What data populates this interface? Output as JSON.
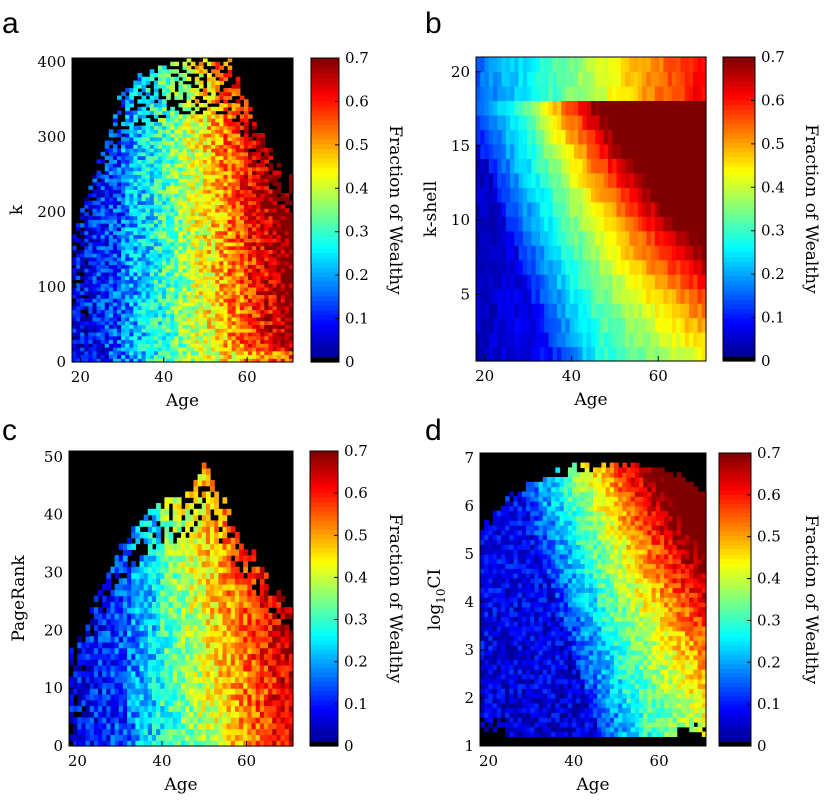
{
  "chart_data": [
    {
      "panel": "a",
      "type": "heatmap",
      "xlabel": "Age",
      "ylabel": "k",
      "xticks": [
        20,
        40,
        60
      ],
      "yticks": [
        0,
        100,
        200,
        300,
        400
      ],
      "xlim": [
        18,
        71
      ],
      "ylim": [
        0,
        405
      ],
      "colorbar": {
        "label": "Fraction of Wealthy",
        "ticks": [
          0,
          0.1,
          0.2,
          0.3,
          0.4,
          0.5,
          0.6,
          0.7
        ],
        "range": [
          0,
          0.7
        ]
      },
      "grid": {
        "nx": 54,
        "ny": 81,
        "top_at_age": [
          [
            18,
            160
          ],
          [
            22,
            230
          ],
          [
            26,
            300
          ],
          [
            30,
            360
          ],
          [
            34,
            380
          ],
          [
            38,
            390
          ],
          [
            44,
            400
          ],
          [
            50,
            405
          ],
          [
            56,
            400
          ],
          [
            60,
            350
          ],
          [
            64,
            300
          ],
          [
            68,
            250
          ],
          [
            71,
            240
          ]
        ],
        "noise": 0.09,
        "sparse": true
      }
    },
    {
      "panel": "b",
      "type": "heatmap",
      "xlabel": "Age",
      "ylabel": "k-shell",
      "xticks": [
        20,
        40,
        60
      ],
      "yticks": [
        5,
        10,
        15,
        20
      ],
      "xlim": [
        18,
        71
      ],
      "ylim": [
        0.5,
        21
      ],
      "colorbar": {
        "label": "Fraction of Wealthy",
        "ticks": [
          0,
          0.1,
          0.2,
          0.3,
          0.4,
          0.5,
          0.6,
          0.7
        ],
        "range": [
          0,
          0.7
        ]
      },
      "grid": {
        "nx": 54,
        "ny": 21,
        "top_at_age": [
          [
            18,
            21
          ],
          [
            71,
            21
          ]
        ],
        "noise": 0.025,
        "sparse": false
      }
    },
    {
      "panel": "c",
      "type": "heatmap",
      "xlabel": "Age",
      "ylabel": "PageRank",
      "xticks": [
        20,
        40,
        60
      ],
      "yticks": [
        0,
        10,
        20,
        30,
        40,
        50
      ],
      "xlim": [
        18,
        71
      ],
      "ylim": [
        0,
        51
      ],
      "colorbar": {
        "label": "Fraction of Wealthy",
        "ticks": [
          0,
          0.1,
          0.2,
          0.3,
          0.4,
          0.5,
          0.6,
          0.7
        ],
        "range": [
          0,
          0.7
        ]
      },
      "grid": {
        "nx": 54,
        "ny": 51,
        "top_at_age": [
          [
            18,
            15
          ],
          [
            22,
            21
          ],
          [
            26,
            28
          ],
          [
            30,
            34
          ],
          [
            34,
            38
          ],
          [
            40,
            42
          ],
          [
            46,
            44
          ],
          [
            50,
            49
          ],
          [
            54,
            43
          ],
          [
            58,
            37
          ],
          [
            62,
            33
          ],
          [
            66,
            28
          ],
          [
            71,
            24
          ]
        ],
        "noise": 0.08,
        "sparse": true
      }
    },
    {
      "panel": "d",
      "type": "heatmap",
      "xlabel": "Age",
      "ylabel": "log10CI",
      "xticks": [
        20,
        40,
        60
      ],
      "yticks": [
        1,
        2,
        3,
        4,
        5,
        6,
        7
      ],
      "xlim": [
        18,
        71
      ],
      "ylim": [
        1,
        7.1
      ],
      "colorbar": {
        "label": "Fraction of Wealthy",
        "ticks": [
          0,
          0.1,
          0.2,
          0.3,
          0.4,
          0.5,
          0.6,
          0.7
        ],
        "range": [
          0,
          0.7
        ]
      },
      "grid": {
        "nx": 54,
        "ny": 61,
        "top_at_age": [
          [
            18,
            5.4
          ],
          [
            24,
            6.1
          ],
          [
            30,
            6.5
          ],
          [
            36,
            6.65
          ],
          [
            44,
            6.85
          ],
          [
            52,
            6.9
          ],
          [
            60,
            6.8
          ],
          [
            66,
            6.5
          ],
          [
            71,
            6.3
          ]
        ],
        "noise": 0.06,
        "sparse": false
      }
    }
  ]
}
